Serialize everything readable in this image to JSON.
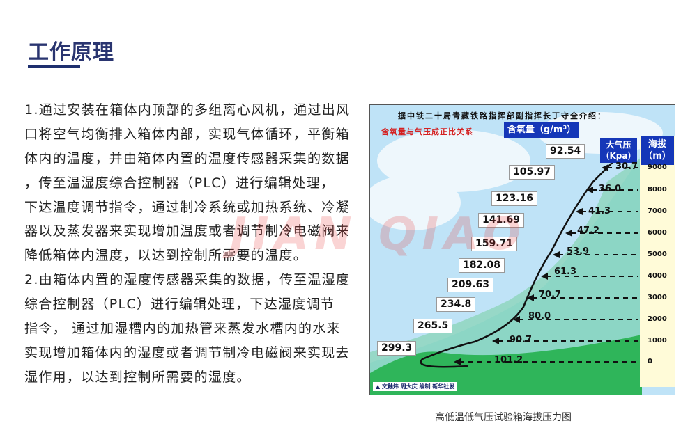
{
  "section": {
    "title": "工作原理",
    "accent_color": "#2a3570"
  },
  "body_lines": [
    "1.通过安装在箱体内顶部的多组离心风机，通过出风",
    "口将空气均衡排入箱体内部，实现气体循环，平衡箱",
    "体内的温度，并由箱体内置的温度传感器采集的数据",
    "，传至温湿度综合控制器（PLC）进行编辑处理，",
    "下达温度调节指令，通过制冷系统或加热系统、冷凝",
    "器以及蒸发器来实现增加温度或者调节制冷电磁阀来",
    "降低箱体内温度，以达到控制所需要的温度。",
    "2.由箱体内置的湿度传感器采集的数据，传至温湿度",
    "综合控制器（PLC）进行编辑处理，下达湿度调节",
    "指令， 通过加湿槽内的加热管来蒸发水槽内的水来",
    "实现增加箱体内的湿度或者调节制冷电磁阀来实现去",
    "湿作用，以达到控制所需要的湿度。"
  ],
  "figure": {
    "heading": "据中铁二十局青藏铁路指挥部副指挥长丁守全介绍：",
    "subheading": "含氧量与气压成正比关系",
    "oxygen_label": "含氧量（g/m³）",
    "pressure_label_1": "大气压",
    "pressure_label_2": "（Kpa）",
    "altitude_label_1": "海拔",
    "altitude_label_2": "（m）",
    "credit": "文釉炜 周大庆 编制 新华社发",
    "oxygen": [
      "92.54",
      "105.97",
      "123.16",
      "141.69",
      "159.71",
      "182.08",
      "209.63",
      "234.8",
      "265.5",
      "299.3"
    ],
    "pressure": [
      "30.7",
      "36.0",
      "41.3",
      "47.2",
      "53.9",
      "61.3",
      "70.7",
      "80.0",
      "90.7",
      "101.2"
    ],
    "altitude": [
      "9000",
      "8000",
      "7000",
      "6000",
      "5000",
      "4000",
      "3000",
      "2000",
      "1000",
      "0"
    ],
    "colors": {
      "sky": "#bfe3f7",
      "hill": "#2fb55a",
      "header_blue": "#1537b8",
      "subheading_red": "#d42020",
      "altitude_column": "#fffbd8"
    }
  },
  "watermark": "JIAN QIAO",
  "caption": "高低温低气压试验箱海拔压力图"
}
